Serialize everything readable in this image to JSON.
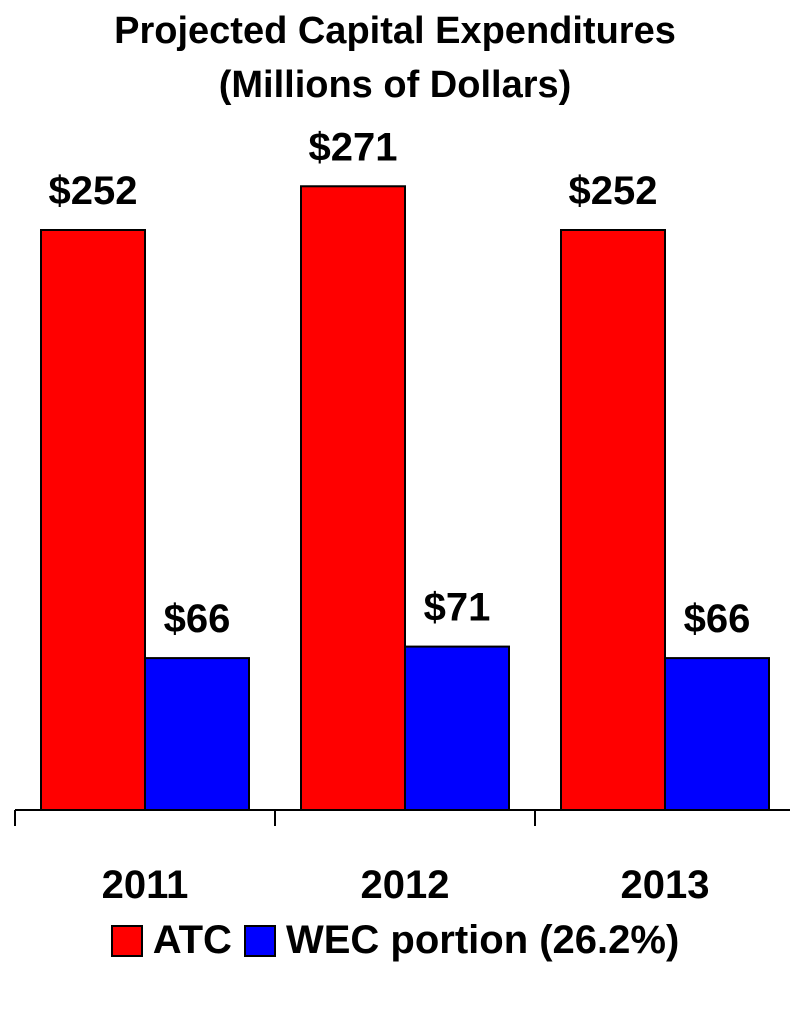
{
  "title_line_1": "Projected Capital Expenditures",
  "title_line_2": "(Millions of Dollars)",
  "chart_data": {
    "type": "bar",
    "title": "Projected Capital Expenditures (Millions of Dollars)",
    "categories": [
      "2011",
      "2012",
      "2013"
    ],
    "series": [
      {
        "name": "ATC",
        "values": [
          252,
          271,
          252
        ],
        "labels": [
          "$252",
          "$271",
          "$252"
        ],
        "color": "#ff0000"
      },
      {
        "name": "WEC portion (26.2%)",
        "values": [
          66,
          71,
          66
        ],
        "labels": [
          "$66",
          "$71",
          "$66"
        ],
        "color": "#0000ff"
      }
    ],
    "ylim": [
      0,
      300
    ],
    "grid": false,
    "legend_position": "bottom"
  }
}
